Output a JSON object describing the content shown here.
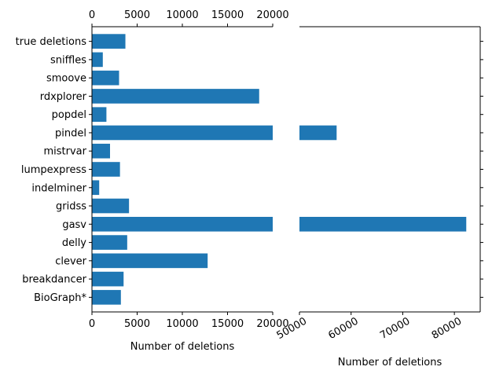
{
  "chart_data": {
    "type": "bar",
    "orientation": "horizontal",
    "broken_x_axis": true,
    "categories": [
      "BioGraph*",
      "breakdancer",
      "clever",
      "delly",
      "gasv",
      "gridss",
      "indelminer",
      "lumpexpress",
      "mistrvar",
      "pindel",
      "popdel",
      "rdxplorer",
      "smoove",
      "sniffles",
      "true deletions"
    ],
    "values": [
      3200,
      3500,
      12800,
      3900,
      82300,
      4100,
      800,
      3100,
      2000,
      57200,
      1600,
      18500,
      3000,
      1200,
      3700
    ],
    "color": "#1f77b4",
    "xlabel_left": "Number of deletions",
    "xlabel_right": "Number of deletions",
    "left_panel": {
      "xlim": [
        0,
        20000
      ],
      "ticks": [
        0,
        5000,
        10000,
        15000,
        20000
      ],
      "tick_labels": [
        "0",
        "5000",
        "10000",
        "15000",
        "20000"
      ]
    },
    "right_panel": {
      "xlim": [
        50000,
        85000
      ],
      "ticks": [
        50000,
        60000,
        70000,
        80000
      ],
      "tick_labels": [
        "50000",
        "60000",
        "70000",
        "80000"
      ]
    },
    "grid": false
  }
}
